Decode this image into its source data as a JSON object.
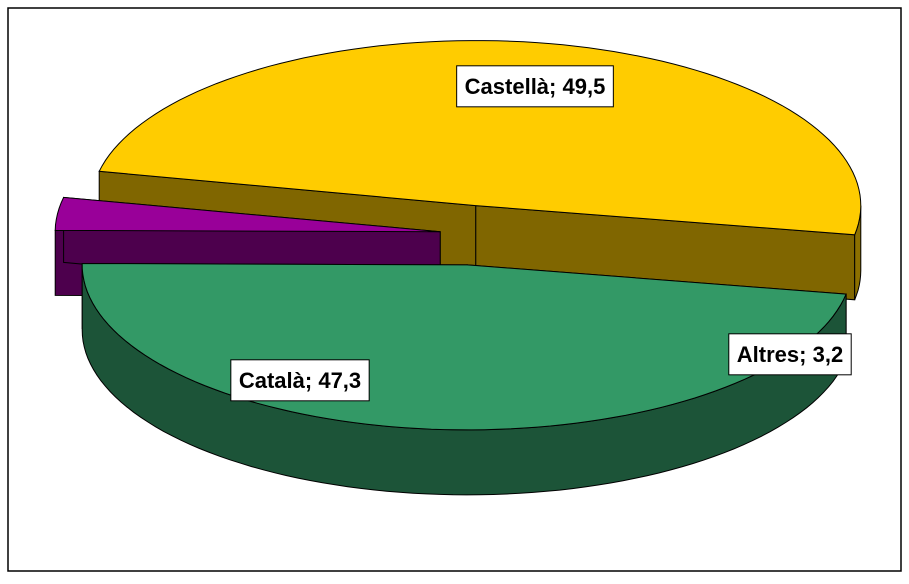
{
  "chart_data": {
    "type": "pie",
    "categories": [
      "Castellà",
      "Català",
      "Altres"
    ],
    "values": [
      49.5,
      47.3,
      3.2
    ],
    "value_labels": [
      "49,5",
      "47,3",
      "3,2"
    ],
    "series": [
      {
        "colors": [
          "#ffcc00",
          "#339966",
          "#990099"
        ]
      }
    ]
  }
}
